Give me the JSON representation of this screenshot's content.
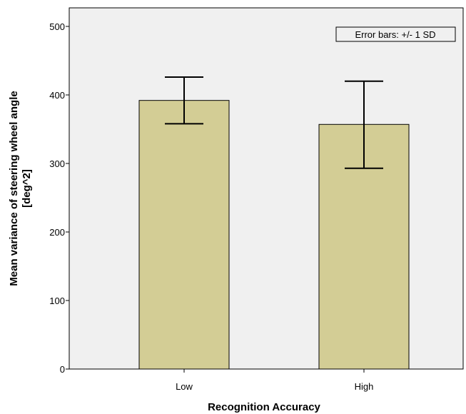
{
  "chart_data": {
    "type": "bar",
    "categories": [
      "Low",
      "High"
    ],
    "values": [
      392,
      357
    ],
    "error_bars": [
      {
        "low": 358,
        "high": 426
      },
      {
        "low": 293,
        "high": 420
      }
    ],
    "xlabel": "Recognition Accuracy",
    "ylabel": [
      "Mean variance of steering wheel angle",
      "[deg^2]"
    ],
    "ylim": [
      0,
      500
    ],
    "yticks": [
      0,
      100,
      200,
      300,
      400,
      500
    ],
    "annotation": "Error bars: +/- 1 SD",
    "legend_position": "top-right",
    "grid": false,
    "colors": {
      "bar_fill": "#d3cd95",
      "plot_background": "#f0f0f0"
    }
  }
}
